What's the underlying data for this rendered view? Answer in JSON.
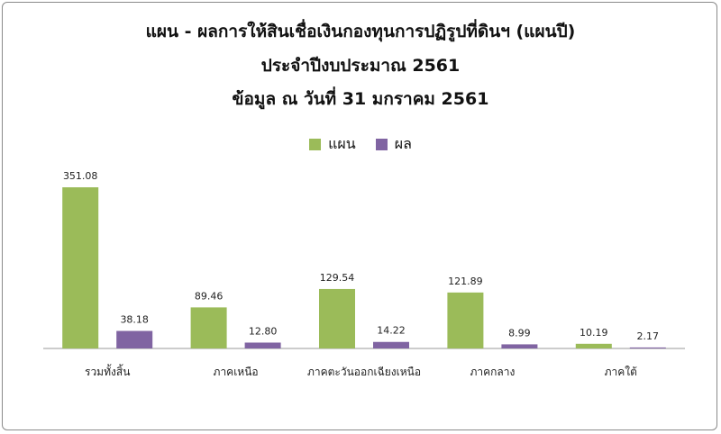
{
  "chart_data": {
    "type": "bar",
    "title": "แผน - ผลการให้สินเชื่อเงินกองทุนการปฏิรูปที่ดินฯ  (แผนปี)",
    "subtitle_1": "ประจำปีงบประมาณ 2561",
    "subtitle_2": "ข้อมูล ณ วันที่ 31 มกราคม 2561",
    "categories": [
      "รวมทั้งสิ้น",
      "ภาคเหนือ",
      "ภาคตะวันออกเฉียงเหนือ",
      "ภาคกลาง",
      "ภาคใต้"
    ],
    "series": [
      {
        "name": "แผน",
        "color": "#9bbb59",
        "values": [
          351.08,
          89.46,
          129.54,
          121.89,
          10.19
        ]
      },
      {
        "name": "ผล",
        "color": "#8064a2",
        "values": [
          38.18,
          12.8,
          14.22,
          8.99,
          2.17
        ]
      }
    ],
    "value_labels": [
      [
        "351.08",
        "89.46",
        "129.54",
        "121.89",
        "10.19"
      ],
      [
        "38.18",
        "12.80",
        "14.22",
        "8.99",
        "2.17"
      ]
    ],
    "ylim": [
      0,
      351.08
    ],
    "legend_position": "top-center",
    "grid": false,
    "axis_color": "#9a9a9a"
  }
}
